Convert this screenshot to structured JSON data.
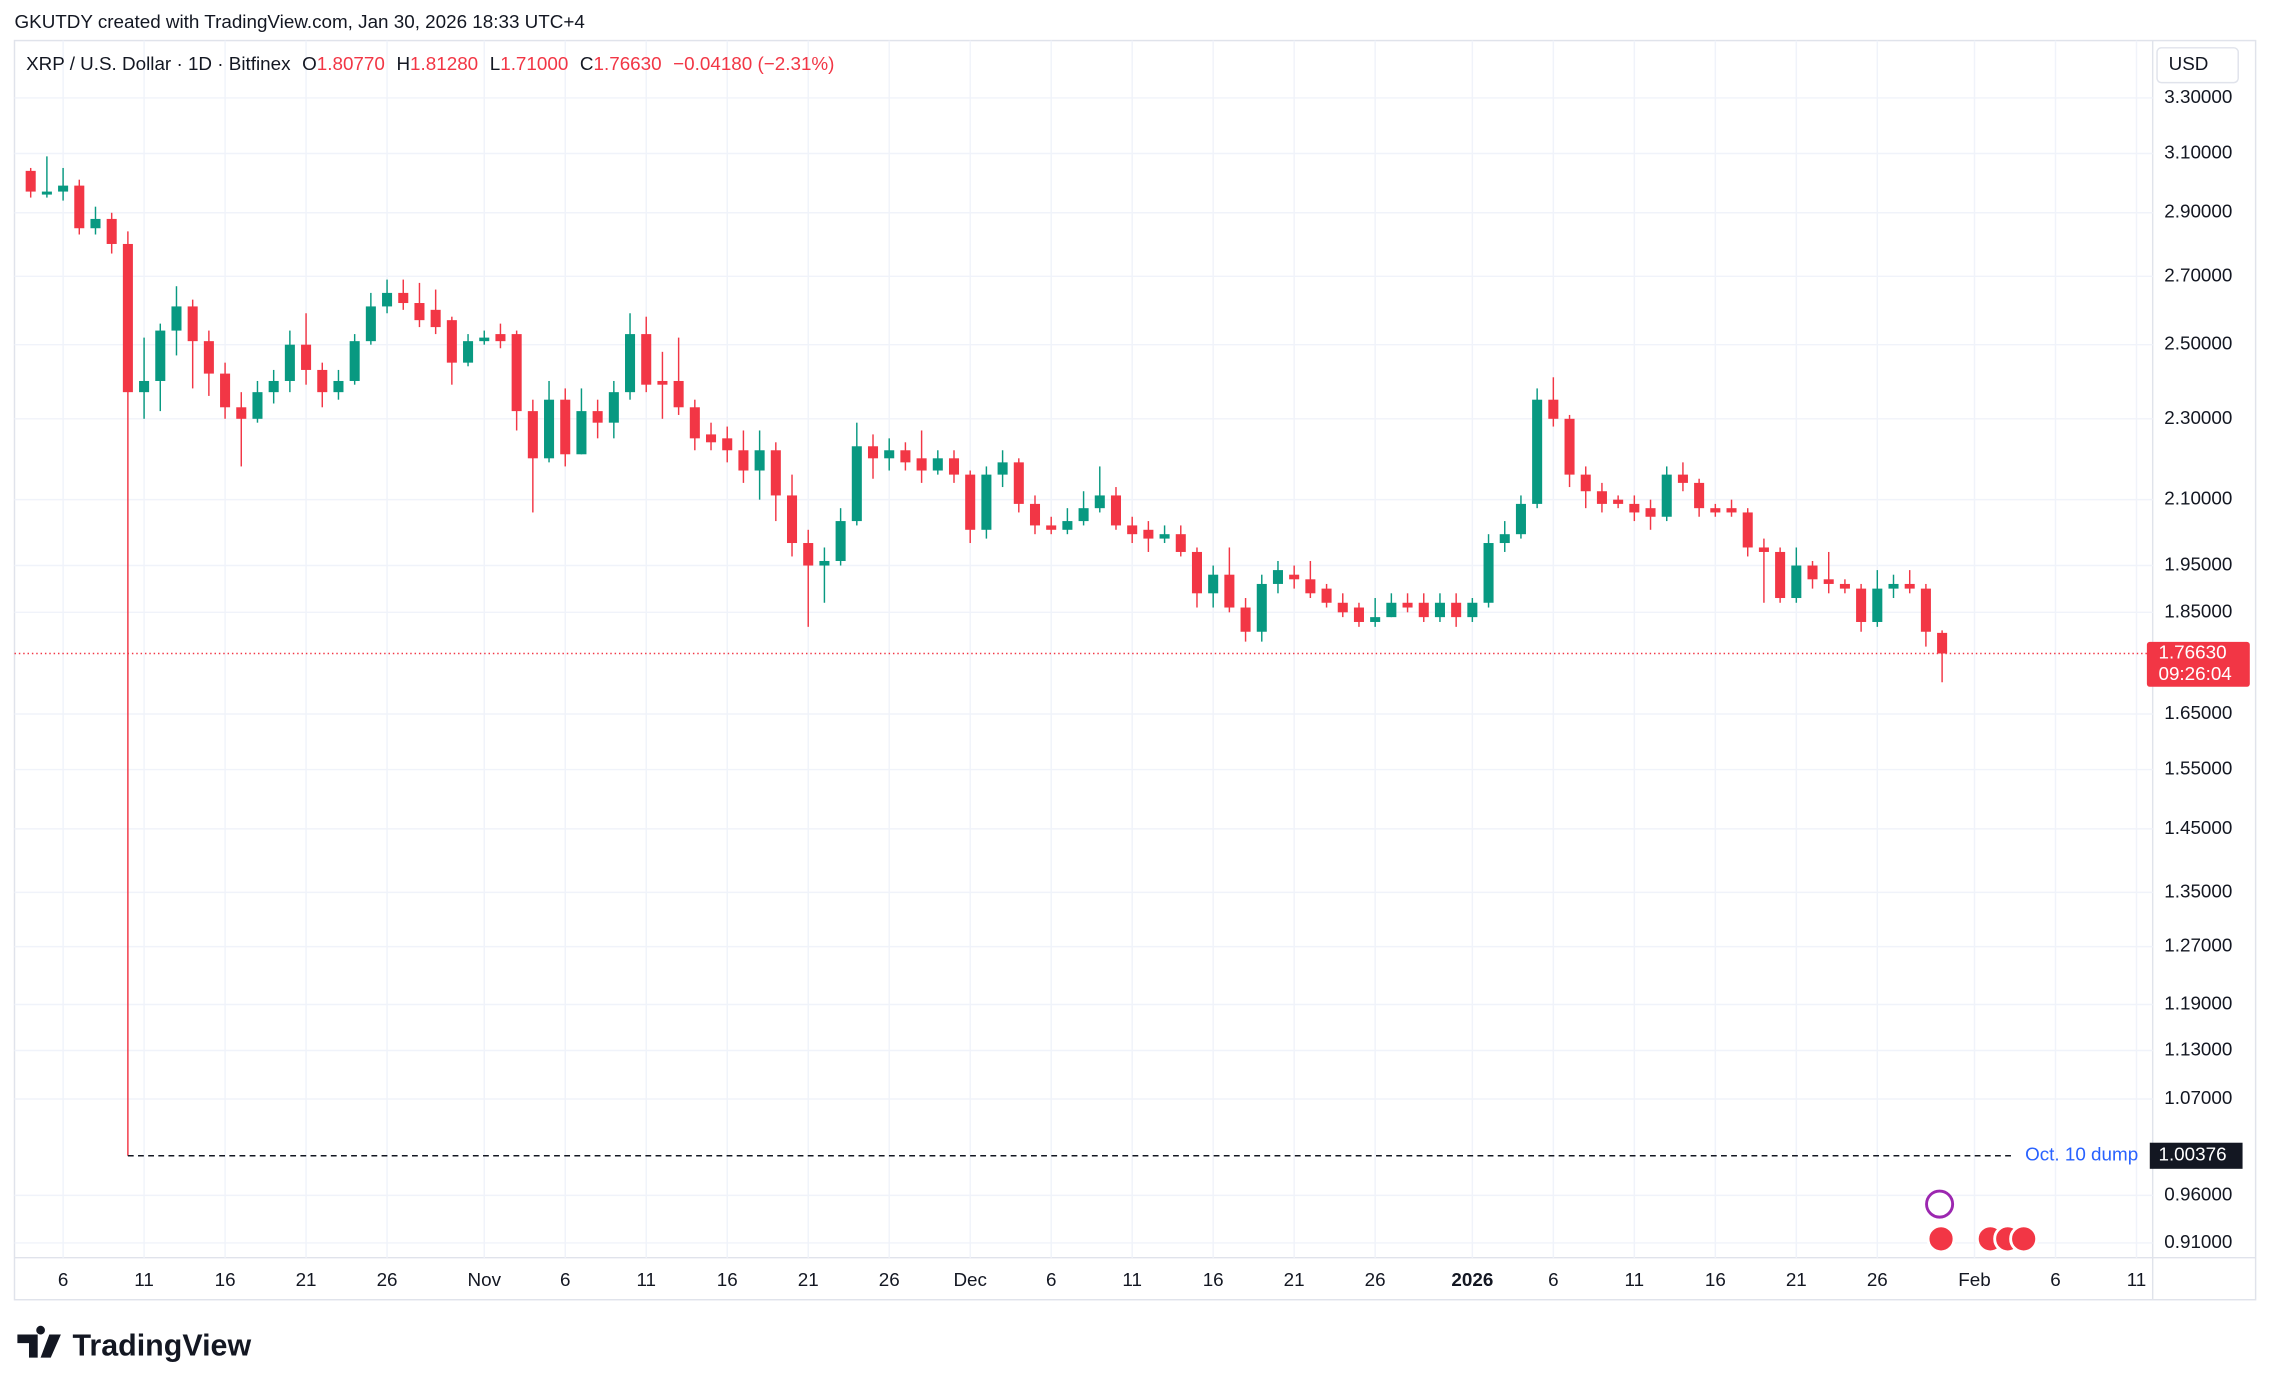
{
  "header": "GKUTDY created with TradingView.com, Jan 30, 2026 18:33 UTC+4",
  "brand": "TradingView",
  "chart_data": {
    "type": "candlestick",
    "legend": {
      "symbol": "XRP / U.S. Dollar · 1D · Bitfinex",
      "items": [
        {
          "key": "O",
          "value": "1.80770"
        },
        {
          "key": "H",
          "value": "1.81280"
        },
        {
          "key": "L",
          "value": "1.71000"
        },
        {
          "key": "C",
          "value": "1.76630"
        }
      ],
      "change": "−0.04180 (−2.31%)"
    },
    "currency": "USD",
    "up_color": "#089981",
    "down_color": "#f23645",
    "log_scale": true,
    "grid": true,
    "x": [
      "2025-10-04",
      "2025-10-05",
      "2025-10-06",
      "2025-10-07",
      "2025-10-08",
      "2025-10-09",
      "2025-10-10",
      "2025-10-11",
      "2025-10-12",
      "2025-10-13",
      "2025-10-14",
      "2025-10-15",
      "2025-10-16",
      "2025-10-17",
      "2025-10-18",
      "2025-10-19",
      "2025-10-20",
      "2025-10-21",
      "2025-10-22",
      "2025-10-23",
      "2025-10-24",
      "2025-10-25",
      "2025-10-26",
      "2025-10-27",
      "2025-10-28",
      "2025-10-29",
      "2025-10-30",
      "2025-10-31",
      "2025-11-01",
      "2025-11-02",
      "2025-11-03",
      "2025-11-04",
      "2025-11-05",
      "2025-11-06",
      "2025-11-07",
      "2025-11-08",
      "2025-11-09",
      "2025-11-10",
      "2025-11-11",
      "2025-11-12",
      "2025-11-13",
      "2025-11-14",
      "2025-11-15",
      "2025-11-16",
      "2025-11-17",
      "2025-11-18",
      "2025-11-19",
      "2025-11-20",
      "2025-11-21",
      "2025-11-22",
      "2025-11-23",
      "2025-11-24",
      "2025-11-25",
      "2025-11-26",
      "2025-11-27",
      "2025-11-28",
      "2025-11-29",
      "2025-11-30",
      "2025-12-01",
      "2025-12-02",
      "2025-12-03",
      "2025-12-04",
      "2025-12-05",
      "2025-12-06",
      "2025-12-07",
      "2025-12-08",
      "2025-12-09",
      "2025-12-10",
      "2025-12-11",
      "2025-12-12",
      "2025-12-13",
      "2025-12-14",
      "2025-12-15",
      "2025-12-16",
      "2025-12-17",
      "2025-12-18",
      "2025-12-19",
      "2025-12-20",
      "2025-12-21",
      "2025-12-22",
      "2025-12-23",
      "2025-12-24",
      "2025-12-25",
      "2025-12-26",
      "2025-12-27",
      "2025-12-28",
      "2025-12-29",
      "2025-12-30",
      "2025-12-31",
      "2026-01-01",
      "2026-01-02",
      "2026-01-03",
      "2026-01-04",
      "2026-01-05",
      "2026-01-06",
      "2026-01-07",
      "2026-01-08",
      "2026-01-09",
      "2026-01-10",
      "2026-01-11",
      "2026-01-12",
      "2026-01-13",
      "2026-01-14",
      "2026-01-15",
      "2026-01-16",
      "2026-01-17",
      "2026-01-18",
      "2026-01-19",
      "2026-01-20",
      "2026-01-21",
      "2026-01-22",
      "2026-01-23",
      "2026-01-24",
      "2026-01-25",
      "2026-01-26",
      "2026-01-27",
      "2026-01-28",
      "2026-01-29",
      "2026-01-30"
    ],
    "open": [
      3.04,
      2.96,
      2.97,
      2.99,
      2.85,
      2.88,
      2.8,
      2.37,
      2.4,
      2.54,
      2.61,
      2.51,
      2.42,
      2.33,
      2.3,
      2.37,
      2.4,
      2.5,
      2.43,
      2.37,
      2.4,
      2.51,
      2.61,
      2.65,
      2.62,
      2.6,
      2.57,
      2.45,
      2.51,
      2.53,
      2.53,
      2.32,
      2.2,
      2.35,
      2.21,
      2.32,
      2.29,
      2.37,
      2.53,
      2.4,
      2.4,
      2.33,
      2.26,
      2.25,
      2.22,
      2.17,
      2.22,
      2.11,
      2.0,
      1.95,
      1.96,
      2.05,
      2.23,
      2.2,
      2.22,
      2.2,
      2.17,
      2.2,
      2.16,
      2.03,
      2.16,
      2.19,
      2.09,
      2.04,
      2.03,
      2.05,
      2.08,
      2.11,
      2.04,
      2.03,
      2.01,
      2.02,
      1.98,
      1.89,
      1.93,
      1.86,
      1.81,
      1.91,
      1.93,
      1.92,
      1.9,
      1.87,
      1.86,
      1.83,
      1.84,
      1.87,
      1.87,
      1.84,
      1.87,
      1.84,
      1.87,
      2.0,
      2.02,
      2.09,
      2.35,
      2.3,
      2.16,
      2.12,
      2.1,
      2.09,
      2.08,
      2.06,
      2.16,
      2.14,
      2.08,
      2.08,
      2.07,
      1.99,
      1.98,
      1.88,
      1.95,
      1.92,
      1.91,
      1.9,
      1.83,
      1.9,
      1.91,
      1.9,
      1.8077
    ],
    "high": [
      3.05,
      3.09,
      3.05,
      3.01,
      2.92,
      2.9,
      2.84,
      2.52,
      2.56,
      2.67,
      2.63,
      2.54,
      2.45,
      2.37,
      2.4,
      2.43,
      2.54,
      2.59,
      2.45,
      2.43,
      2.53,
      2.65,
      2.69,
      2.69,
      2.68,
      2.66,
      2.58,
      2.53,
      2.54,
      2.56,
      2.54,
      2.35,
      2.4,
      2.38,
      2.38,
      2.35,
      2.4,
      2.59,
      2.58,
      2.48,
      2.52,
      2.35,
      2.29,
      2.28,
      2.27,
      2.27,
      2.24,
      2.16,
      2.03,
      1.99,
      2.08,
      2.29,
      2.26,
      2.25,
      2.24,
      2.27,
      2.22,
      2.22,
      2.17,
      2.18,
      2.22,
      2.2,
      2.11,
      2.06,
      2.08,
      2.12,
      2.18,
      2.13,
      2.06,
      2.05,
      2.04,
      2.04,
      1.99,
      1.95,
      1.99,
      1.88,
      1.93,
      1.96,
      1.95,
      1.96,
      1.91,
      1.89,
      1.87,
      1.88,
      1.89,
      1.89,
      1.89,
      1.89,
      1.89,
      1.88,
      2.02,
      2.05,
      2.11,
      2.38,
      2.41,
      2.31,
      2.18,
      2.14,
      2.11,
      2.11,
      2.1,
      2.18,
      2.19,
      2.15,
      2.09,
      2.1,
      2.08,
      2.01,
      1.99,
      1.99,
      1.96,
      1.98,
      1.92,
      1.91,
      1.94,
      1.93,
      1.94,
      1.91,
      1.8128
    ],
    "low": [
      2.95,
      2.95,
      2.94,
      2.83,
      2.83,
      2.77,
      1.00376,
      2.3,
      2.32,
      2.47,
      2.38,
      2.36,
      2.3,
      2.18,
      2.29,
      2.34,
      2.37,
      2.39,
      2.33,
      2.35,
      2.39,
      2.5,
      2.59,
      2.6,
      2.55,
      2.53,
      2.39,
      2.44,
      2.5,
      2.49,
      2.27,
      2.07,
      2.19,
      2.18,
      2.21,
      2.25,
      2.25,
      2.35,
      2.37,
      2.3,
      2.31,
      2.22,
      2.22,
      2.19,
      2.14,
      2.1,
      2.05,
      1.97,
      1.82,
      1.87,
      1.95,
      2.04,
      2.15,
      2.17,
      2.17,
      2.14,
      2.16,
      2.14,
      2.0,
      2.01,
      2.13,
      2.07,
      2.02,
      2.02,
      2.02,
      2.04,
      2.07,
      2.03,
      2.0,
      1.98,
      2.0,
      1.97,
      1.86,
      1.86,
      1.85,
      1.79,
      1.79,
      1.89,
      1.9,
      1.88,
      1.86,
      1.84,
      1.82,
      1.82,
      1.84,
      1.85,
      1.83,
      1.83,
      1.82,
      1.83,
      1.86,
      1.98,
      2.01,
      2.08,
      2.28,
      2.13,
      2.08,
      2.07,
      2.08,
      2.05,
      2.03,
      2.05,
      2.12,
      2.06,
      2.06,
      2.06,
      1.97,
      1.87,
      1.87,
      1.87,
      1.9,
      1.89,
      1.89,
      1.81,
      1.82,
      1.88,
      1.89,
      1.78,
      1.71
    ],
    "close": [
      2.97,
      2.97,
      2.99,
      2.85,
      2.88,
      2.8,
      2.37,
      2.4,
      2.54,
      2.61,
      2.51,
      2.42,
      2.33,
      2.3,
      2.37,
      2.4,
      2.5,
      2.43,
      2.37,
      2.4,
      2.51,
      2.61,
      2.65,
      2.62,
      2.57,
      2.55,
      2.45,
      2.51,
      2.52,
      2.51,
      2.32,
      2.2,
      2.35,
      2.21,
      2.32,
      2.29,
      2.37,
      2.53,
      2.39,
      2.39,
      2.33,
      2.25,
      2.24,
      2.22,
      2.17,
      2.22,
      2.11,
      2.0,
      1.95,
      1.96,
      2.05,
      2.23,
      2.2,
      2.22,
      2.19,
      2.17,
      2.2,
      2.16,
      2.03,
      2.16,
      2.19,
      2.09,
      2.04,
      2.03,
      2.05,
      2.08,
      2.11,
      2.04,
      2.02,
      2.01,
      2.02,
      1.98,
      1.89,
      1.93,
      1.86,
      1.81,
      1.91,
      1.94,
      1.92,
      1.89,
      1.87,
      1.85,
      1.83,
      1.84,
      1.87,
      1.86,
      1.84,
      1.87,
      1.84,
      1.87,
      2.0,
      2.02,
      2.09,
      2.35,
      2.3,
      2.16,
      2.12,
      2.09,
      2.09,
      2.07,
      2.06,
      2.16,
      2.14,
      2.08,
      2.07,
      2.07,
      1.99,
      1.98,
      1.88,
      1.95,
      1.92,
      1.91,
      1.9,
      1.83,
      1.9,
      1.91,
      1.9,
      1.81,
      1.7663
    ],
    "xlim": [
      "2025-10-03",
      "2026-02-12"
    ],
    "xticks": [
      {
        "value": "2025-10-06",
        "label": "6"
      },
      {
        "value": "2025-10-11",
        "label": "11"
      },
      {
        "value": "2025-10-16",
        "label": "16"
      },
      {
        "value": "2025-10-21",
        "label": "21"
      },
      {
        "value": "2025-10-26",
        "label": "26"
      },
      {
        "value": "2025-11-01",
        "label": "Nov"
      },
      {
        "value": "2025-11-06",
        "label": "6"
      },
      {
        "value": "2025-11-11",
        "label": "11"
      },
      {
        "value": "2025-11-16",
        "label": "16"
      },
      {
        "value": "2025-11-21",
        "label": "21"
      },
      {
        "value": "2025-11-26",
        "label": "26"
      },
      {
        "value": "2025-12-01",
        "label": "Dec"
      },
      {
        "value": "2025-12-06",
        "label": "6"
      },
      {
        "value": "2025-12-11",
        "label": "11"
      },
      {
        "value": "2025-12-16",
        "label": "16"
      },
      {
        "value": "2025-12-21",
        "label": "21"
      },
      {
        "value": "2025-12-26",
        "label": "26"
      },
      {
        "value": "2026-01-01",
        "label": "2026"
      },
      {
        "value": "2026-01-06",
        "label": "6"
      },
      {
        "value": "2026-01-11",
        "label": "11"
      },
      {
        "value": "2026-01-16",
        "label": "16"
      },
      {
        "value": "2026-01-21",
        "label": "21"
      },
      {
        "value": "2026-01-26",
        "label": "26"
      },
      {
        "value": "2026-02-01",
        "label": "Feb"
      },
      {
        "value": "2026-02-06",
        "label": "6"
      },
      {
        "value": "2026-02-11",
        "label": "11"
      }
    ],
    "ylim": [
      0.895,
      3.52
    ],
    "yticks": [
      {
        "value": 3.3,
        "label": "3.30000"
      },
      {
        "value": 3.1,
        "label": "3.10000"
      },
      {
        "value": 2.9,
        "label": "2.90000"
      },
      {
        "value": 2.7,
        "label": "2.70000"
      },
      {
        "value": 2.5,
        "label": "2.50000"
      },
      {
        "value": 2.3,
        "label": "2.30000"
      },
      {
        "value": 2.1,
        "label": "2.10000"
      },
      {
        "value": 1.95,
        "label": "1.95000"
      },
      {
        "value": 1.85,
        "label": "1.85000"
      },
      {
        "value": 1.65,
        "label": "1.65000"
      },
      {
        "value": 1.55,
        "label": "1.55000"
      },
      {
        "value": 1.45,
        "label": "1.45000"
      },
      {
        "value": 1.35,
        "label": "1.35000"
      },
      {
        "value": 1.27,
        "label": "1.27000"
      },
      {
        "value": 1.19,
        "label": "1.19000"
      },
      {
        "value": 1.13,
        "label": "1.13000"
      },
      {
        "value": 1.07,
        "label": "1.07000"
      },
      {
        "value": 0.96,
        "label": "0.96000"
      },
      {
        "value": 0.91,
        "label": "0.91000"
      }
    ],
    "last_price": {
      "value": 1.7663,
      "label": "1.76630",
      "countdown": "09:26:04"
    },
    "annotation": {
      "text": "Oct. 10 dump",
      "value": 1.00376,
      "label": "1.00376",
      "from": "2025-10-10"
    }
  }
}
